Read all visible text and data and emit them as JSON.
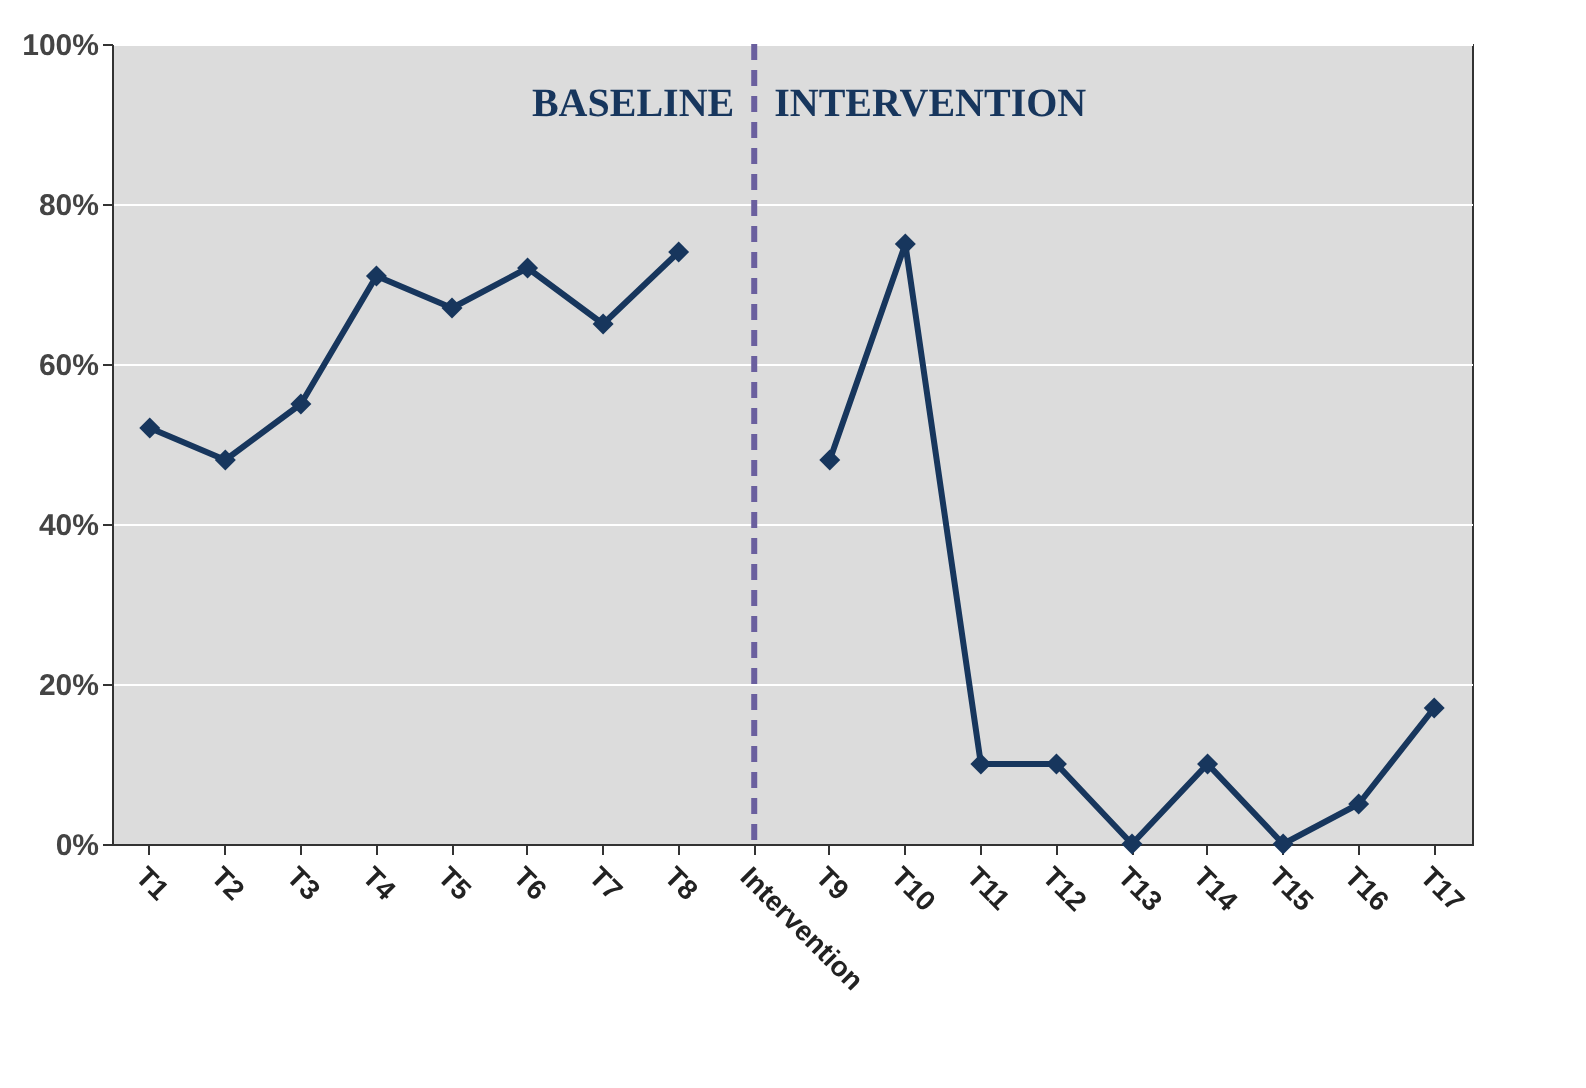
{
  "chart_data": {
    "type": "line",
    "categories": [
      "T1",
      "T2",
      "T3",
      "T4",
      "T5",
      "T6",
      "T7",
      "T8",
      "Intervention",
      "T9",
      "T10",
      "T11",
      "T12",
      "T13",
      "T14",
      "T15",
      "T16",
      "T17"
    ],
    "series": [
      {
        "color": "#17365d",
        "values": [
          52,
          48,
          55,
          71,
          67,
          72,
          65,
          74,
          null,
          48,
          75,
          10,
          10,
          0,
          10,
          0,
          5,
          17
        ]
      }
    ],
    "ylim": [
      0,
      100
    ],
    "yticks": [
      {
        "value": 0,
        "label": "0%"
      },
      {
        "value": 20,
        "label": "20%"
      },
      {
        "value": 40,
        "label": "40%"
      },
      {
        "value": 60,
        "label": "60%"
      },
      {
        "value": 80,
        "label": "80%"
      },
      {
        "value": 100,
        "label": "100%"
      }
    ],
    "grid": "y",
    "marker": "diamond",
    "line_style": "solid",
    "ref_lines": [
      {
        "axis": "x",
        "value": "Intervention",
        "color": "#6a5f9e",
        "line_style": "dashed"
      }
    ],
    "annotations": [
      "BASELINE",
      "INTERVENTION"
    ]
  }
}
